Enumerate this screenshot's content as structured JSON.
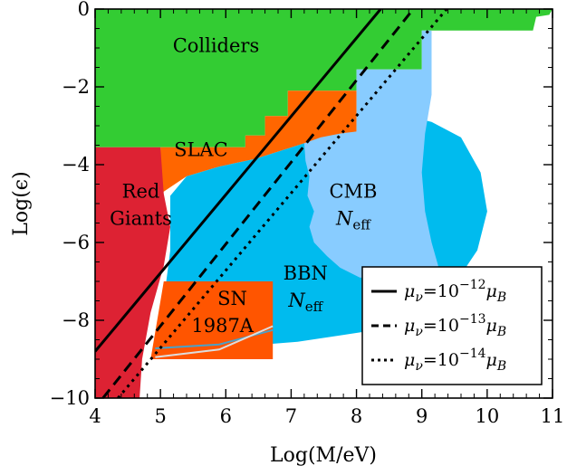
{
  "chart_data": {
    "type": "area",
    "xlabel": "Log(M/eV)",
    "ylabel": "Log(ϵ)",
    "xlim": [
      4,
      11
    ],
    "ylim": [
      -10,
      0
    ],
    "x_ticks": [
      4,
      5,
      6,
      7,
      8,
      9,
      10,
      11
    ],
    "y_ticks": [
      0,
      -2,
      -4,
      -6,
      -8,
      -10
    ],
    "x_tick_labels": [
      "4",
      "5",
      "6",
      "7",
      "8",
      "9",
      "10",
      "11"
    ],
    "y_tick_labels": [
      "0",
      "−2",
      "−4",
      "−6",
      "−8",
      "−10"
    ],
    "regions": [
      {
        "label": "Colliders",
        "color": "#33cc33",
        "polygon": [
          [
            4,
            0
          ],
          [
            11,
            0
          ],
          [
            10.95,
            -0.15
          ],
          [
            10.75,
            -0.2
          ],
          [
            10.7,
            -0.55
          ],
          [
            9.0,
            -0.55
          ],
          [
            9.0,
            -1.55
          ],
          [
            8.0,
            -1.55
          ],
          [
            8.0,
            -2.1
          ],
          [
            6.95,
            -2.1
          ],
          [
            6.95,
            -2.75
          ],
          [
            6.6,
            -2.75
          ],
          [
            6.6,
            -3.25
          ],
          [
            6.3,
            -3.25
          ],
          [
            6.3,
            -3.55
          ],
          [
            4,
            -3.55
          ]
        ]
      },
      {
        "label": "SLAC",
        "color": "#ff6600",
        "polygon": [
          [
            5.0,
            -3.55
          ],
          [
            6.3,
            -3.55
          ],
          [
            6.3,
            -3.25
          ],
          [
            6.6,
            -3.25
          ],
          [
            6.6,
            -2.75
          ],
          [
            6.95,
            -2.75
          ],
          [
            6.95,
            -2.1
          ],
          [
            8.0,
            -2.1
          ],
          [
            8.0,
            -3.15
          ],
          [
            7.2,
            -3.45
          ],
          [
            6.45,
            -3.85
          ],
          [
            5.9,
            -4.05
          ],
          [
            5.4,
            -4.3
          ],
          [
            5.0,
            -4.75
          ]
        ]
      },
      {
        "label": "Red Giants",
        "color": "#dd2233",
        "polygon": [
          [
            4,
            -3.55
          ],
          [
            5.0,
            -3.55
          ],
          [
            5.05,
            -4.75
          ],
          [
            5.15,
            -5.6
          ],
          [
            5.05,
            -6.6
          ],
          [
            4.85,
            -7.8
          ],
          [
            4.72,
            -9.0
          ],
          [
            4.68,
            -10
          ],
          [
            4,
            -10
          ]
        ]
      },
      {
        "label": "BBN N_eff",
        "color": "#00bbee",
        "polygon": [
          [
            5.15,
            -4.8
          ],
          [
            5.4,
            -4.3
          ],
          [
            5.9,
            -4.05
          ],
          [
            6.45,
            -3.85
          ],
          [
            7.2,
            -3.45
          ],
          [
            8.0,
            -3.15
          ],
          [
            8.0,
            -3.3
          ],
          [
            8.3,
            -3.35
          ],
          [
            8.6,
            -3.2
          ],
          [
            8.9,
            -2.8
          ],
          [
            9.15,
            -2.9
          ],
          [
            9.6,
            -3.3
          ],
          [
            9.9,
            -4.2
          ],
          [
            10.0,
            -5.2
          ],
          [
            9.85,
            -6.2
          ],
          [
            9.45,
            -7.2
          ],
          [
            8.9,
            -7.85
          ],
          [
            8.1,
            -8.3
          ],
          [
            7.1,
            -8.55
          ],
          [
            6.0,
            -8.7
          ],
          [
            4.9,
            -8.8
          ],
          [
            5.05,
            -7.5
          ],
          [
            5.15,
            -6.2
          ]
        ]
      },
      {
        "label": "CMB N_eff",
        "color": "#88ccff",
        "polygon": [
          [
            7.2,
            -3.45
          ],
          [
            7.45,
            -3.3
          ],
          [
            7.75,
            -3.2
          ],
          [
            8.0,
            -3.15
          ],
          [
            8.0,
            -1.55
          ],
          [
            9.0,
            -1.55
          ],
          [
            9.0,
            -0.55
          ],
          [
            9.15,
            -0.55
          ],
          [
            9.15,
            -2.2
          ],
          [
            9.05,
            -3.2
          ],
          [
            9.0,
            -4.2
          ],
          [
            9.05,
            -5.2
          ],
          [
            9.15,
            -6.0
          ],
          [
            9.25,
            -6.6
          ],
          [
            9.2,
            -7.0
          ],
          [
            8.9,
            -7.1
          ],
          [
            8.5,
            -6.95
          ],
          [
            8.05,
            -6.9
          ],
          [
            7.75,
            -6.65
          ],
          [
            7.55,
            -6.35
          ],
          [
            7.35,
            -6.0
          ],
          [
            7.28,
            -5.6
          ],
          [
            7.35,
            -5.2
          ],
          [
            7.25,
            -4.8
          ],
          [
            7.28,
            -4.3
          ],
          [
            7.22,
            -3.9
          ]
        ]
      },
      {
        "label": "SN 1987A",
        "color": "#ff5500",
        "polygon": [
          [
            5.05,
            -7.0
          ],
          [
            6.72,
            -7.0
          ],
          [
            6.72,
            -9.0
          ],
          [
            4.85,
            -9.0
          ],
          [
            4.92,
            -8.3
          ]
        ]
      }
    ],
    "region_labels": [
      {
        "text": "Colliders",
        "x": 5.85,
        "y": -1.1
      },
      {
        "text": "SLAC",
        "x": 5.62,
        "y": -3.78
      },
      {
        "text": "Red",
        "x": 4.7,
        "y": -4.85
      },
      {
        "text": "Giants",
        "x": 4.7,
        "y": -5.55
      },
      {
        "text": "CMB",
        "x": 7.95,
        "y": -4.85
      },
      {
        "text": "BBN",
        "x": 7.22,
        "y": -6.95
      },
      {
        "text": "SN",
        "x": 6.1,
        "y": -7.6
      },
      {
        "text": "1987A",
        "x": 5.95,
        "y": -8.3
      }
    ],
    "neff_labels": [
      {
        "x": 7.95,
        "y": -5.55
      },
      {
        "x": 7.22,
        "y": -7.65
      }
    ],
    "neff_text": {
      "main": "N",
      "sub": "eff"
    },
    "series": [
      {
        "name": "μν=10⁻¹²μB",
        "style": "solid",
        "x": [
          4,
          8.37
        ],
        "y": [
          -8.8,
          0
        ]
      },
      {
        "name": "μν=10⁻¹³μB",
        "style": "dashed",
        "x": [
          4.12,
          8.87
        ],
        "y": [
          -10,
          0
        ]
      },
      {
        "name": "μν=10⁻¹⁴μB",
        "style": "dotted",
        "x": [
          4.35,
          9.38
        ],
        "y": [
          -10,
          0
        ]
      }
    ],
    "sn_inner_curves": [
      {
        "color": "#4aa0c8",
        "x": [
          4.92,
          5.9,
          6.72
        ],
        "y": [
          -8.72,
          -8.62,
          -8.25
        ]
      },
      {
        "color": "#dddddd",
        "x": [
          4.92,
          5.9,
          6.72
        ],
        "y": [
          -8.95,
          -8.75,
          -8.15
        ]
      }
    ],
    "legend": {
      "position": "bottom-right",
      "entries": [
        {
          "prefix": "μ",
          "sub": "ν",
          "eq": "=10",
          "exp": "−12",
          "tail": "μ",
          "tail_sub": "B",
          "style": "solid"
        },
        {
          "prefix": "μ",
          "sub": "ν",
          "eq": "=10",
          "exp": "−13",
          "tail": "μ",
          "tail_sub": "B",
          "style": "dashed"
        },
        {
          "prefix": "μ",
          "sub": "ν",
          "eq": "=10",
          "exp": "−14",
          "tail": "μ",
          "tail_sub": "B",
          "style": "dotted"
        }
      ]
    },
    "grid": false
  }
}
